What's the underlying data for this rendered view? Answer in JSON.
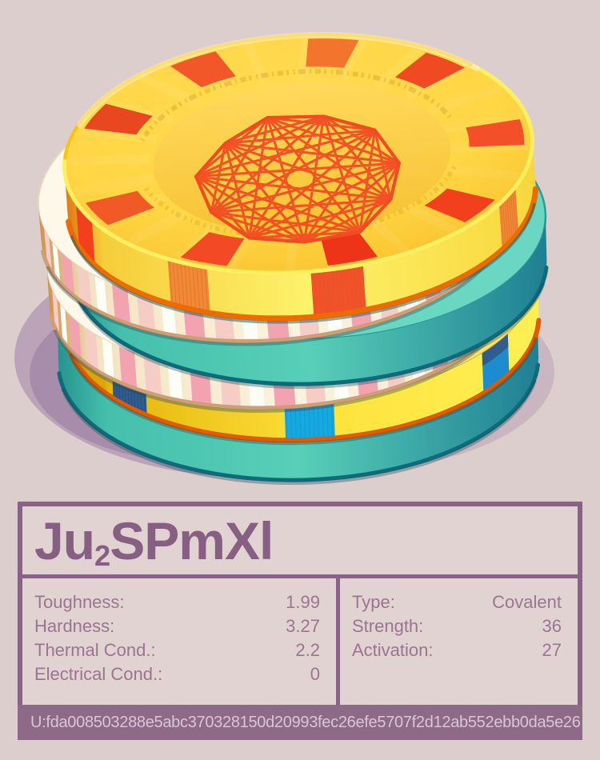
{
  "material": {
    "formula_plain": "Ju2SPmXl",
    "formula_segments": [
      {
        "text": "Ju",
        "sub": false
      },
      {
        "text": "2",
        "sub": true
      },
      {
        "text": "SPmXl",
        "sub": false
      }
    ],
    "stats_left": [
      {
        "label": "Toughness:",
        "value": "1.99"
      },
      {
        "label": "Hardness:",
        "value": "3.27"
      },
      {
        "label": "Thermal Cond.:",
        "value": "2.2"
      },
      {
        "label": "Electrical Cond.:",
        "value": "0"
      }
    ],
    "stats_right": [
      {
        "label": "Type:",
        "value": "Covalent"
      },
      {
        "label": "Strength:",
        "value": "36"
      },
      {
        "label": "Activation:",
        "value": "27"
      }
    ],
    "uid": "U:fda008503288e5abc370328150d20993fec26efe5707f2d12ab552ebb0da5e26"
  },
  "theme": {
    "background": "#dbcecc",
    "card_border": "#8a6285",
    "card_background": "#e0d3d2",
    "title_color": "#875f82",
    "stats_color": "#9c7492",
    "footer_background": "#8d6a88",
    "footer_text_color": "#d9c6d6"
  },
  "illustration": {
    "colors": {
      "shadow_purple": "#9b79a4",
      "shadow_purple_dark": "#8d6b98",
      "top_face_light": "#ffdb52",
      "top_face_mid": "#ffd644",
      "top_face_dark": "#f9c22e",
      "top_face_edge_gold": "#fcc212",
      "top_face_edge_lemon": "#fdef62",
      "top_inner_light": "#ffd95c",
      "top_inner_dark": "#f7c233",
      "top_rim_edge_orange": "#ec6c02",
      "mark_red": "#f2401d",
      "mark_red_deep": "#ee3418",
      "mark_orange": "#f3742c",
      "mark_orange_soft": "#f08a38",
      "mark_red_soft": "#f0512a",
      "wireframe_red": "#f24b22",
      "micro_text_gold": "#d1961c",
      "teal_top": "#69d7c1",
      "teal_edge_dark": "#0d6b7b",
      "cream_top": "#fdf8e9",
      "cream_stripe_pink": "#f2a3af",
      "cream_stripe_blush": "#f6cdc5",
      "cream_stripe_white": "#fffef6",
      "cream_edge_tan": "#d09e74",
      "y2_top": "#ffe462",
      "y2_edge_orange": "#e25b00",
      "y2_mark_navy": "#2f5d90",
      "y2_mark_blue": "#16a8e1",
      "y2_mark_blue2": "#1b8cce",
      "y2_mark_mustard": "#d9a708",
      "y2_mark_red": "#e0561b",
      "contact_shadow": "rgba(25,70,80,0.35)",
      "highlight_cream": "rgba(255,244,196,0.55)"
    },
    "gradients": {
      "top_rim": [
        "#dd7d18",
        "#f6cd3a",
        "#fdf26b",
        "#f8d73d"
      ],
      "teal": [
        "#27948f",
        "#45c0ac",
        "#58cfb8",
        "#1f7f93"
      ],
      "cream": [
        "#cf9350",
        "#f3e3c2",
        "#fbf3de",
        "#f6e8cd"
      ],
      "yellow_lower": [
        "#c8861e",
        "#e5b60b",
        "#ffe33d",
        "#fdf054"
      ]
    }
  }
}
